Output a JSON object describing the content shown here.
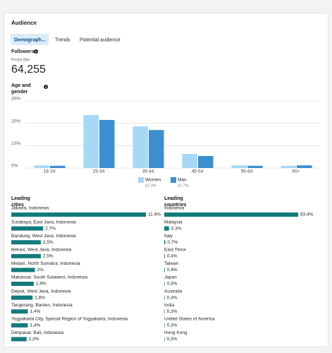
{
  "header": {
    "title": "Audience"
  },
  "tabs": [
    "Demograph...",
    "Trends",
    "Potential audience"
  ],
  "followers": {
    "label": "Followers",
    "note": "From the",
    "count": "64,255"
  },
  "chart_data": {
    "type": "bar",
    "title": "Age and gender",
    "categories": [
      "18-24",
      "25-34",
      "35-44",
      "45-54",
      "55-64",
      "65+"
    ],
    "series": [
      {
        "name": "Women",
        "color": "#a7d8f5",
        "values": [
          1.2,
          23.7,
          18.6,
          6.3,
          1.2,
          1.0
        ],
        "share": "52.3%"
      },
      {
        "name": "Man",
        "color": "#3b8fcf",
        "values": [
          1.0,
          21.5,
          17.0,
          5.4,
          1.0,
          1.2
        ],
        "share": "47.7%"
      }
    ],
    "ylim": [
      0,
      30
    ],
    "yticks": [
      {
        "value": 0,
        "label": "0%"
      },
      {
        "value": 10,
        "label": "10%"
      },
      {
        "value": 20,
        "label": "20%"
      },
      {
        "value": 30,
        "label": "30%"
      }
    ],
    "grid": true
  },
  "cities": {
    "title": "Leading cities",
    "color": "#137b7b",
    "names": [
      "Jakarta, Indonesia",
      "Surabaya, East Java, Indonesia",
      "Bandung, West Java, Indonesia",
      "Bekasi, West Java, Indonesia",
      "Medan, North Sumatra, Indonesia",
      "Makassar, South Sulawesi, Indonesia",
      "Depok, West Java, Indonesia",
      "Tangerang, Banten, Indonesia",
      "Yogyakarta City, Special Region of Yogyakarta, Indonesia",
      "Denpasar, Bali, Indonesia"
    ],
    "values": [
      11.4,
      2.7,
      2.5,
      2.5,
      2,
      1.9,
      1.8,
      1.4,
      1.4,
      1.3
    ],
    "value_labels": [
      "11.4%",
      "2.7%",
      "2,5%",
      "2,5%",
      "2%",
      "1,9%",
      "1,8%",
      "1,4%",
      "1,4%",
      "1,3%"
    ]
  },
  "countries": {
    "title": "Leading countries",
    "color": "#137b7b",
    "names": [
      "Indonesia",
      "Malaysia",
      "Italy",
      "East Timor",
      "Taiwan",
      "Japan",
      "Australia",
      "India",
      "United States of America",
      "Hong Kong"
    ],
    "values": [
      93.4,
      3.3,
      0.7,
      0.4,
      0.4,
      0.3,
      0.3,
      0.3,
      0.3,
      0.3
    ],
    "value_labels": [
      "93.4%",
      "3.3%",
      "0,7%",
      "0,4%",
      "0,4%",
      "0,3%",
      "0,3%",
      "0,3%",
      "0,3%",
      "0,3%"
    ]
  }
}
